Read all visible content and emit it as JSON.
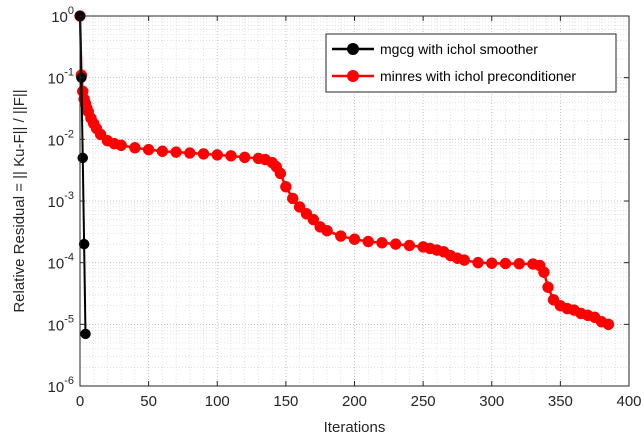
{
  "chart_data": {
    "type": "line",
    "title": "",
    "xlabel": "Iterations",
    "ylabel": "Relative Residual = || Ku-F|| / ||F||",
    "xlim": [
      0,
      400
    ],
    "ylim": [
      1e-06,
      1
    ],
    "yscale": "log",
    "grid": "on (major and minor, dotted)",
    "legend_position": "top-right",
    "x_ticks": [
      0,
      50,
      100,
      150,
      200,
      250,
      300,
      350,
      400
    ],
    "x_tick_labels": [
      "0",
      "50",
      "100",
      "150",
      "200",
      "250",
      "300",
      "350",
      "400"
    ],
    "y_ticks": [
      1e-06,
      1e-05,
      0.0001,
      0.001,
      0.01,
      0.1,
      1
    ],
    "y_tick_labels": [
      {
        "base": "10",
        "exp": "-6"
      },
      {
        "base": "10",
        "exp": "-5"
      },
      {
        "base": "10",
        "exp": "-4"
      },
      {
        "base": "10",
        "exp": "-3"
      },
      {
        "base": "10",
        "exp": "-2"
      },
      {
        "base": "10",
        "exp": "-1"
      },
      {
        "base": "10",
        "exp": "0"
      }
    ],
    "series": [
      {
        "name": "mgcg with ichol smoother",
        "color": "#000000",
        "x": [
          0,
          1,
          2,
          3,
          4
        ],
        "y": [
          1,
          0.1,
          0.005,
          0.0002,
          7e-06
        ]
      },
      {
        "name": "minres with ichol preconditioner",
        "color": "#ff0000",
        "x": [
          0,
          1,
          2,
          3,
          4,
          5,
          6,
          8,
          10,
          12,
          15,
          20,
          25,
          30,
          40,
          50,
          60,
          70,
          80,
          90,
          100,
          110,
          120,
          130,
          135,
          140,
          143,
          146,
          150,
          155,
          160,
          165,
          170,
          175,
          180,
          190,
          200,
          210,
          220,
          230,
          240,
          250,
          255,
          260,
          265,
          270,
          275,
          280,
          290,
          300,
          310,
          320,
          330,
          335,
          338,
          341,
          345,
          350,
          355,
          360,
          365,
          370,
          375,
          380,
          385
        ],
        "y": [
          1,
          0.11,
          0.06,
          0.045,
          0.038,
          0.032,
          0.028,
          0.022,
          0.018,
          0.015,
          0.012,
          0.0095,
          0.0085,
          0.008,
          0.0073,
          0.0068,
          0.0064,
          0.0062,
          0.006,
          0.0058,
          0.0056,
          0.0054,
          0.0051,
          0.0049,
          0.0047,
          0.0042,
          0.0036,
          0.0028,
          0.0017,
          0.0011,
          0.0008,
          0.00062,
          0.0005,
          0.00038,
          0.00033,
          0.00027,
          0.00024,
          0.00022,
          0.00021,
          0.0002,
          0.00019,
          0.00018,
          0.00017,
          0.00016,
          0.00015,
          0.00013,
          0.000118,
          0.00011,
          0.0001,
          9.8e-05,
          9.7e-05,
          9.6e-05,
          9.5e-05,
          9e-05,
          7e-05,
          4e-05,
          2.5e-05,
          2e-05,
          1.8e-05,
          1.7e-05,
          1.5e-05,
          1.4e-05,
          1.3e-05,
          1.1e-05,
          1e-05
        ]
      }
    ]
  }
}
